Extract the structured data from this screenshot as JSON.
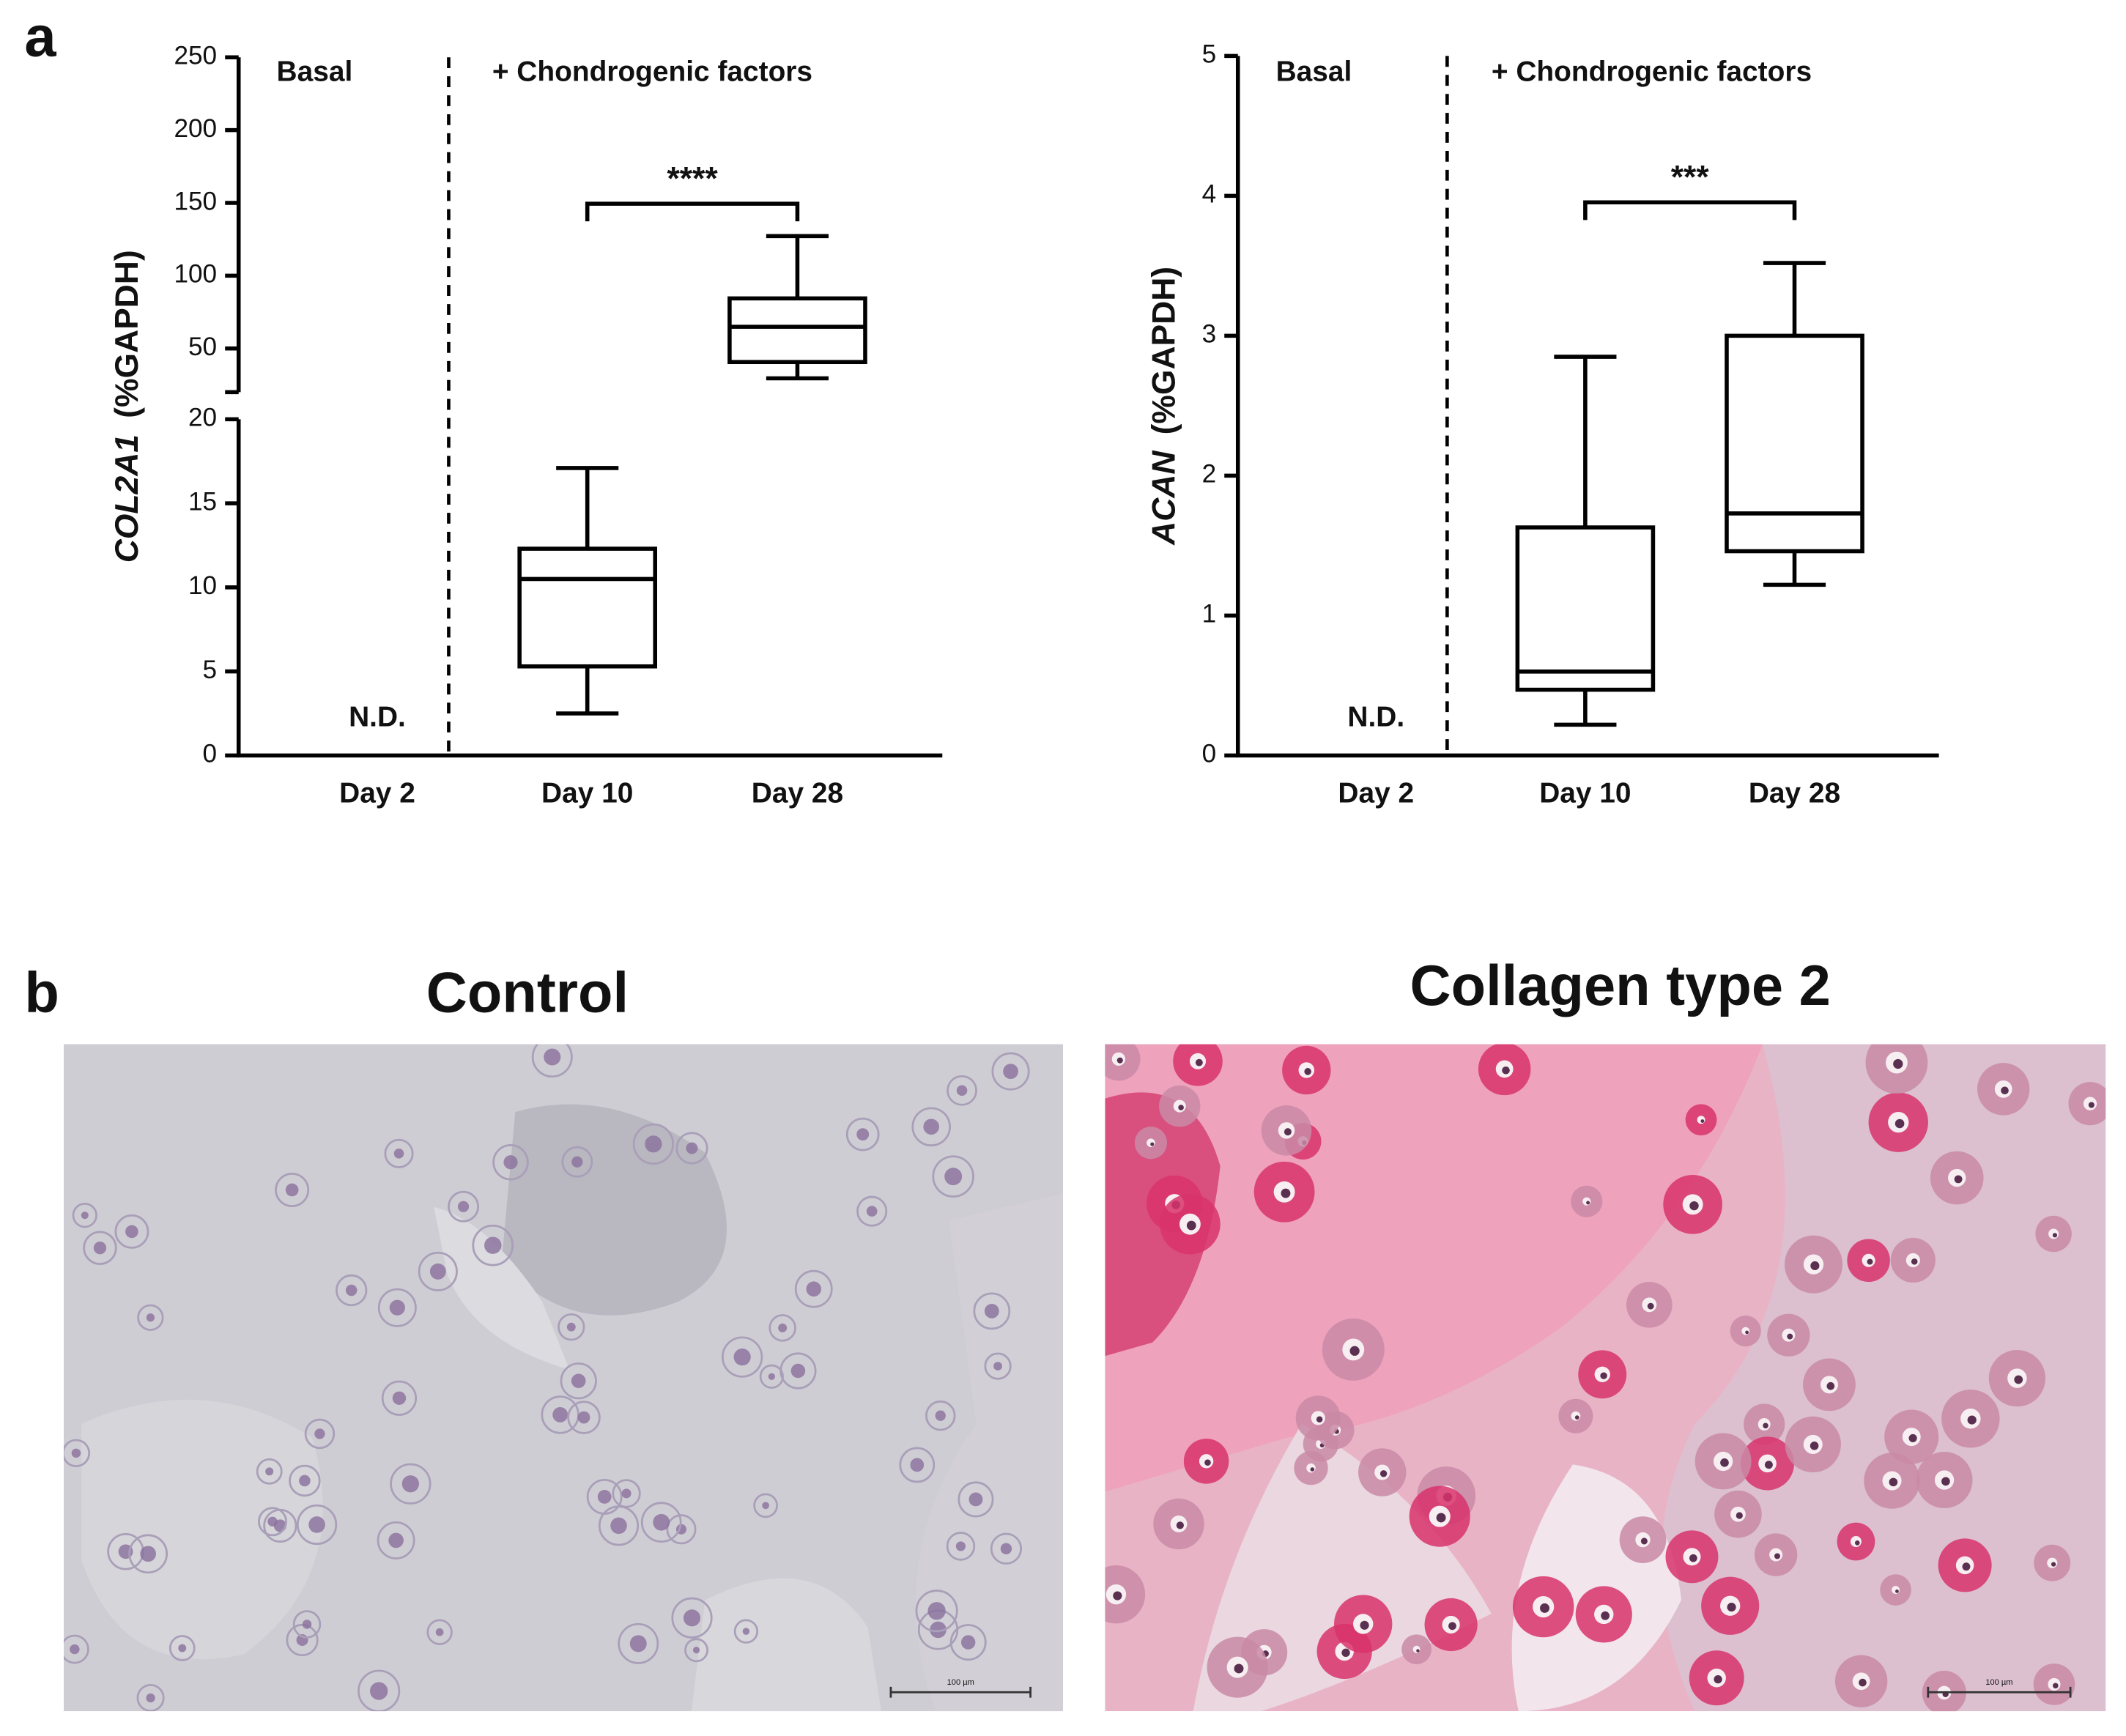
{
  "panel_labels": [
    "a",
    "b"
  ],
  "chart_data": [
    {
      "type": "box",
      "categories": [
        "Day 2",
        "Day 10",
        "Day 28"
      ],
      "min": [
        null,
        2.5,
        29.5
      ],
      "q1": [
        null,
        5.3,
        40.7
      ],
      "median": [
        null,
        10.5,
        64.9
      ],
      "q3": [
        null,
        12.3,
        84.4
      ],
      "max": [
        null,
        17.1,
        127.2
      ],
      "ylim": [
        0,
        20
      ],
      "yticks": [
        0,
        5,
        10,
        15,
        20
      ],
      "ylim_upper": [
        20,
        250
      ],
      "yticks_upper": [
        50,
        100,
        150,
        200,
        250
      ],
      "ylabel_gene": "COL2A1",
      "ylabel_unit": "(%GAPDH)",
      "group_labels": [
        "Basal",
        "+ Chondrogenic factors"
      ],
      "nd_label": "N.D.",
      "significance": "****"
    },
    {
      "type": "box",
      "categories": [
        "Day 2",
        "Day 10",
        "Day 28"
      ],
      "min": [
        null,
        0.22,
        1.22
      ],
      "q1": [
        null,
        0.47,
        1.46
      ],
      "median": [
        null,
        0.6,
        1.73
      ],
      "q3": [
        null,
        1.63,
        3.0
      ],
      "max": [
        null,
        2.85,
        3.52
      ],
      "ylim": [
        0,
        5
      ],
      "yticks": [
        0,
        1,
        2,
        3,
        4,
        5
      ],
      "ylabel_gene": "ACAN",
      "ylabel_unit": "(%GAPDH)",
      "group_labels": [
        "Basal",
        "+ Chondrogenic factors"
      ],
      "nd_label": "N.D.",
      "significance": "***"
    }
  ],
  "images": [
    {
      "title": "Control",
      "scale_bar": "100 µm"
    },
    {
      "title": "Collagen type 2",
      "scale_bar": "100 µm"
    }
  ]
}
